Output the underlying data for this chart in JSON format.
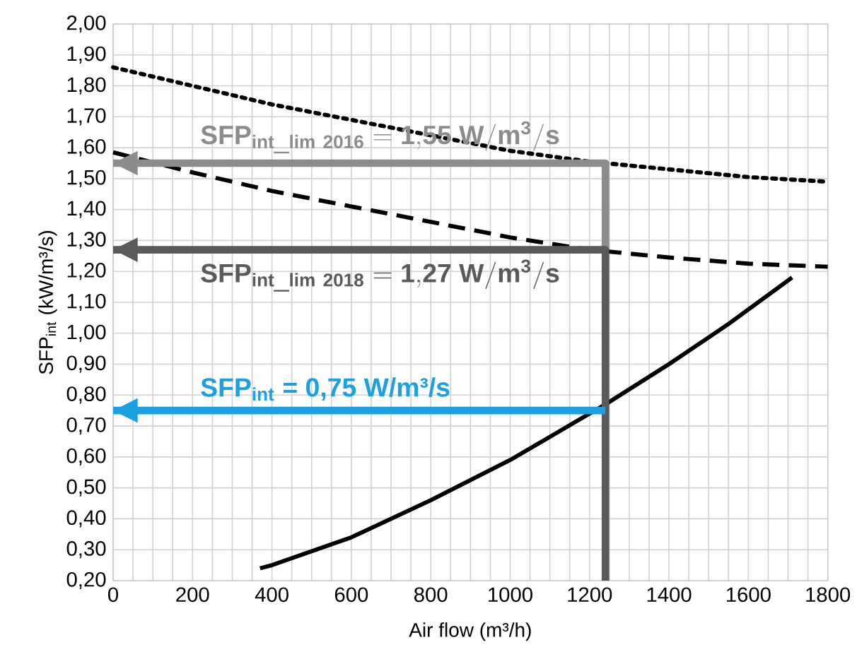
{
  "chart_data": {
    "type": "line",
    "xlabel": "Air flow (m³/h)",
    "ylabel": "SFP$_{int}$ (kW/m³/s)",
    "xlim": [
      0,
      1800
    ],
    "xticks": [
      0,
      200,
      400,
      600,
      800,
      1000,
      1200,
      1400,
      1600,
      1800
    ],
    "ylim": [
      0.2,
      2.0
    ],
    "yticks": [
      {
        "value": 0.2,
        "label": "0,20"
      },
      {
        "value": 0.3,
        "label": "0,30"
      },
      {
        "value": 0.4,
        "label": "0,40"
      },
      {
        "value": 0.5,
        "label": "0,50"
      },
      {
        "value": 0.6,
        "label": "0,60"
      },
      {
        "value": 0.7,
        "label": "0,70"
      },
      {
        "value": 0.8,
        "label": "0,80"
      },
      {
        "value": 0.9,
        "label": "0,90"
      },
      {
        "value": 1.0,
        "label": "1,00"
      },
      {
        "value": 1.1,
        "label": "1,10"
      },
      {
        "value": 1.2,
        "label": "1,20"
      },
      {
        "value": 1.3,
        "label": "1,30"
      },
      {
        "value": 1.4,
        "label": "1,40"
      },
      {
        "value": 1.5,
        "label": "1,50"
      },
      {
        "value": 1.6,
        "label": "1,60"
      },
      {
        "value": 1.7,
        "label": "1,70"
      },
      {
        "value": 1.8,
        "label": "1,80"
      },
      {
        "value": 1.9,
        "label": "1,90"
      },
      {
        "value": 2.0,
        "label": "2,00"
      }
    ],
    "grid": true,
    "marker": "none",
    "series": [
      {
        "color": "#000000",
        "line_style": "dotted",
        "x": [
          0,
          200,
          400,
          600,
          800,
          1000,
          1200,
          1400,
          1600,
          1800
        ],
        "values": [
          1.86,
          1.8,
          1.74,
          1.69,
          1.64,
          1.59,
          1.555,
          1.53,
          1.505,
          1.49
        ]
      },
      {
        "color": "#000000",
        "line_style": "dashed",
        "x": [
          0,
          200,
          400,
          600,
          800,
          1000,
          1200,
          1400,
          1600,
          1800
        ],
        "values": [
          1.585,
          1.52,
          1.46,
          1.41,
          1.36,
          1.31,
          1.27,
          1.245,
          1.225,
          1.215
        ]
      },
      {
        "color": "#000000",
        "line_style": "solid",
        "x": [
          370,
          400,
          600,
          800,
          1000,
          1200,
          1240,
          1400,
          1550,
          1710
        ],
        "values": [
          0.24,
          0.25,
          0.34,
          0.46,
          0.59,
          0.74,
          0.77,
          0.9,
          1.03,
          1.18
        ]
      },
      {
        "color": "#8c8c8c",
        "line_style": "solid",
        "x": [
          1240,
          1240,
          0
        ],
        "values": [
          1.27,
          1.55,
          1.55
        ]
      },
      {
        "color": "#5a5a5a",
        "line_style": "solid",
        "x": [
          1240,
          1240,
          0
        ],
        "values": [
          0.2,
          1.27,
          1.27
        ]
      },
      {
        "color": "#1ba1e2",
        "line_style": "solid",
        "x": [
          1240,
          0
        ],
        "values": [
          0.75,
          0.75
        ]
      }
    ],
    "annotations": [
      "\\mathbf{SFP_{int\\_lim\\ 2016}\\ {=}\\ 1{,}55\\ W{/}m^{3}{/}s}",
      "\\mathbf{SFP_{int\\_lim\\ 2018}\\ {=}\\ 1{,}27\\ W{/}m^{3}{/}s}",
      "**SFP$_{int}$ = 0,75 W/m³/s**"
    ]
  }
}
